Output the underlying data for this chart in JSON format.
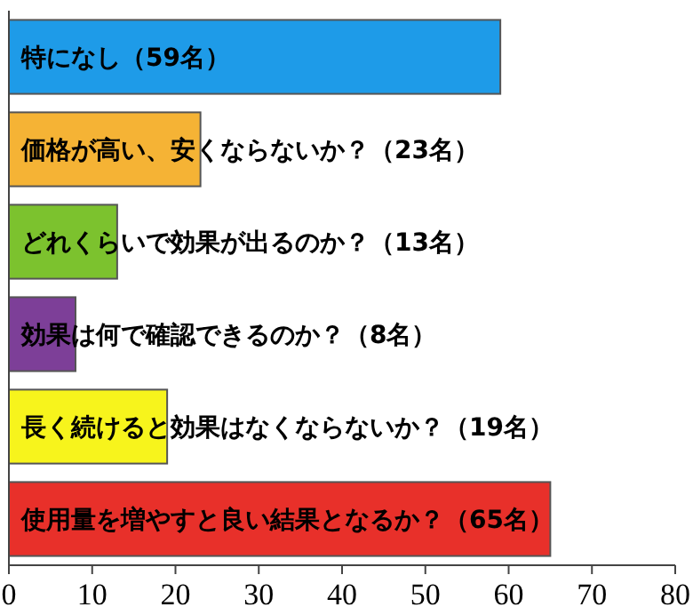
{
  "chart_data": {
    "type": "bar",
    "orientation": "horizontal",
    "categories": [
      "特になし（59名）",
      "価格が高い、安くならないか？（23名）",
      "どれくらいで効果が出るのか？（13名）",
      "効果は何で確認できるのか？（8名）",
      "長く続けると効果はなくならないか？（19名）",
      "使用量を増やすと良い結果となるか？（65名）"
    ],
    "values": [
      59,
      23,
      13,
      8,
      19,
      65
    ],
    "colors": [
      "#1e9be8",
      "#f5b335",
      "#7cc22e",
      "#7d3f98",
      "#f7f41c",
      "#e8302a"
    ],
    "xlim": [
      0,
      80
    ],
    "xticks": [
      0,
      10,
      20,
      30,
      40,
      50,
      60,
      70,
      80
    ],
    "grid": false
  }
}
